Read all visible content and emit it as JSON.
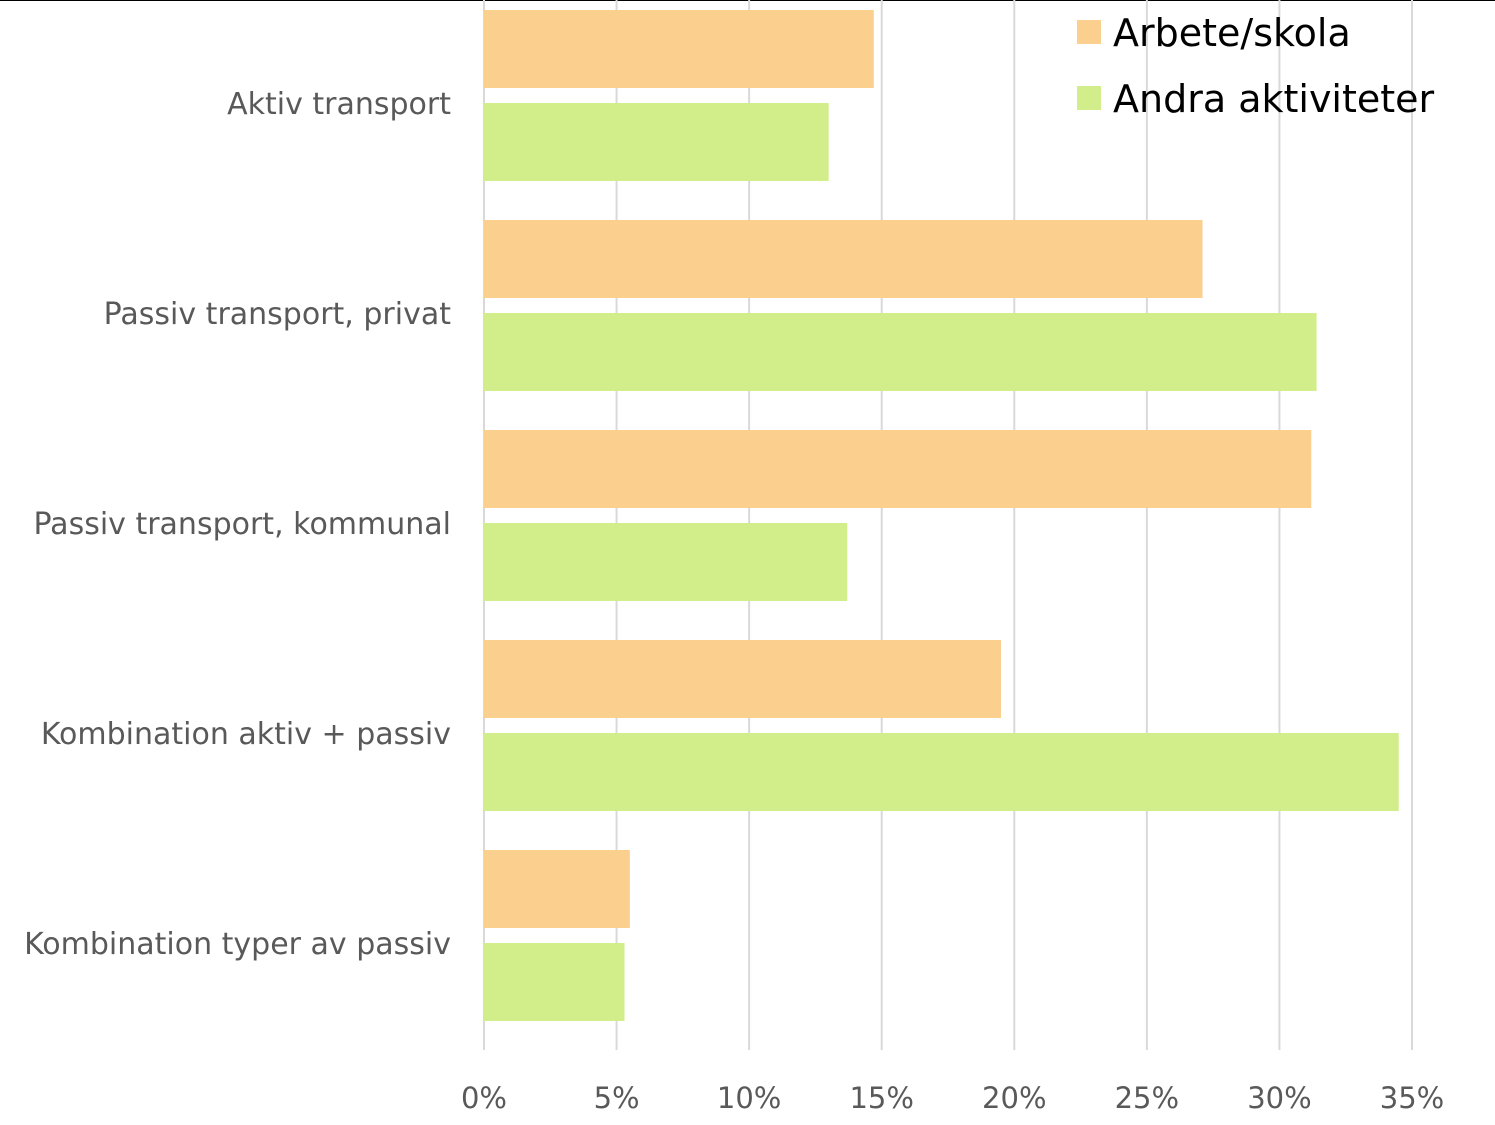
{
  "chart_data": {
    "type": "bar",
    "orientation": "horizontal",
    "categories": [
      "Aktiv transport",
      "Passiv transport, privat",
      "Passiv transport, kommunal",
      "Kombination aktiv + passiv",
      "Kombination typer av passiv"
    ],
    "series": [
      {
        "name": "Arbete/skola",
        "color": "#FBCF8E",
        "values": [
          14.7,
          27.1,
          31.2,
          19.5,
          5.5
        ]
      },
      {
        "name": "Andra aktiviteter",
        "color": "#D1EE8A",
        "values": [
          13.0,
          31.4,
          13.7,
          34.5,
          5.3
        ]
      }
    ],
    "xlim": [
      0,
      35
    ],
    "xticks": [
      0,
      5,
      10,
      15,
      20,
      25,
      30,
      35
    ],
    "xtick_labels": [
      "0%",
      "5%",
      "10%",
      "15%",
      "20%",
      "25%",
      "30%",
      "35%"
    ],
    "grid": "vertical",
    "grid_color": "#D9D9D9",
    "legend_position": "top-right",
    "title": "",
    "xlabel": "",
    "ylabel": ""
  }
}
